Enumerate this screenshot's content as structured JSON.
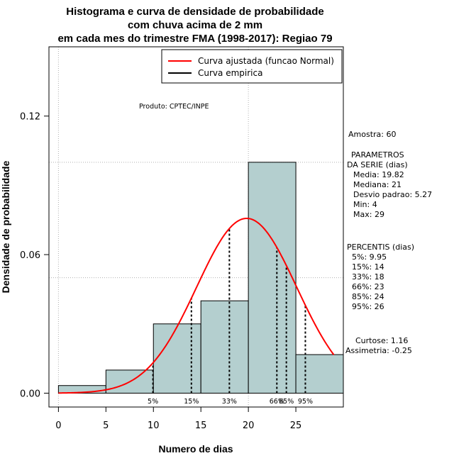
{
  "chart_data": {
    "type": "bar",
    "title_lines": [
      "Histograma e curva de densidade de probabilidade",
      "com chuva acima de 2 mm",
      "em cada mes do trimestre FMA (1998-2017): Regiao 79"
    ],
    "xlabel": "Numero de dias",
    "ylabel": "Densidade de probabilidade",
    "xlim": [
      -1,
      30
    ],
    "ylim": [
      -0.006,
      0.15
    ],
    "x_ticks": [
      0,
      5,
      10,
      15,
      20,
      25
    ],
    "y_ticks": [
      0.0,
      0.06,
      0.12
    ],
    "y_tick_labels": [
      "0.00",
      "0.06",
      "0.12"
    ],
    "bins": [
      {
        "start": 0,
        "end": 5,
        "density": 0.0033
      },
      {
        "start": 5,
        "end": 10,
        "density": 0.01
      },
      {
        "start": 10,
        "end": 15,
        "density": 0.03
      },
      {
        "start": 15,
        "end": 20,
        "density": 0.04
      },
      {
        "start": 20,
        "end": 25,
        "density": 0.1
      },
      {
        "start": 25,
        "end": 30,
        "density": 0.0167
      }
    ],
    "normal_fit": {
      "mean": 19.82,
      "sd": 5.27,
      "x_from": 0,
      "x_to": 29
    },
    "percentile_lines": [
      {
        "label": "5%",
        "x": 9.95
      },
      {
        "label": "15%",
        "x": 14
      },
      {
        "label": "33%",
        "x": 18
      },
      {
        "label": "66%",
        "x": 23
      },
      {
        "label": "85%",
        "x": 24
      },
      {
        "label": "95%",
        "x": 26
      }
    ],
    "grid_h": [
      0.05,
      0.1
    ],
    "grid_v": [
      0,
      20
    ],
    "legend": [
      {
        "label": "Curva ajustada (funcao Normal)",
        "color": "#ff0000"
      },
      {
        "label": "Curva empirica",
        "color": "#000000"
      }
    ],
    "annotation": "Produto: CPTEC/INPE",
    "bar_color": "#b4cfcf",
    "curve_color": "#ff0000"
  },
  "side_text": {
    "amostra": "Amostra: 60",
    "params_title1": "PARAMETROS",
    "params_title2": "DA SERIE (dias)",
    "media": "Media: 19.82",
    "mediana": "Mediana: 21",
    "desvio": "Desvio padrao: 5.27",
    "min": "Min: 4",
    "max": "Max: 29",
    "percentis_title": "PERCENTIS (dias)",
    "p5": "5%: 9.95",
    "p15": "15%: 14",
    "p33": "33%: 18",
    "p66": "66%: 23",
    "p85": "85%: 24",
    "p95": "95%: 26",
    "curtose": "Curtose: 1.16",
    "assimetria": "Assimetria: -0.25"
  }
}
